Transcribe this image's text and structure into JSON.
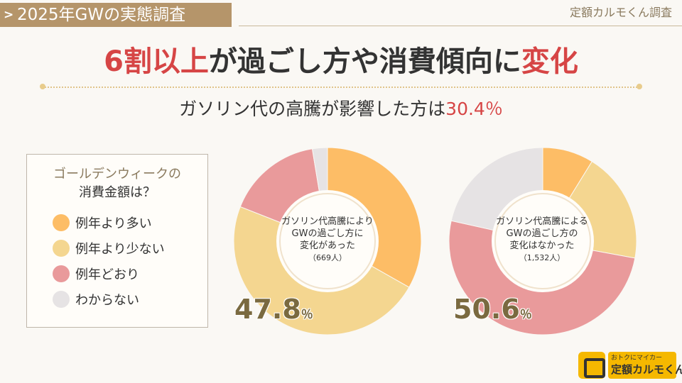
{
  "header": {
    "tag": "2025年GWの実態調査",
    "brand": "定額カルモくん調査"
  },
  "headline": {
    "part1": "6割以上",
    "part2": "が過ごし方や消費傾向に",
    "part3": "変化"
  },
  "subline": {
    "text": "ガソリン代の高騰が影響した方は",
    "pct": "30.4％"
  },
  "legend": {
    "title_line1": "ゴールデンウィークの",
    "title_line2": "消費金額は？",
    "items": [
      {
        "label": "例年より多い",
        "color": "#fdbd66"
      },
      {
        "label": "例年より少ない",
        "color": "#f4d690"
      },
      {
        "label": "例年どおり",
        "color": "#e99a9b"
      },
      {
        "label": "わからない",
        "color": "#e6e3e4"
      }
    ]
  },
  "chart_data": [
    {
      "type": "pie",
      "title": "",
      "center_label": [
        "ガソリン代高騰により",
        "GWの過ごし方に",
        "変化があった"
      ],
      "n_label": "（669人）",
      "categories": [
        "例年より多い",
        "例年より少ない",
        "例年どおり",
        "わからない"
      ],
      "values": [
        33.2,
        47.8,
        16.4,
        2.6
      ],
      "highlight_value": "47.8",
      "highlight_unit": "％"
    },
    {
      "type": "pie",
      "title": "",
      "center_label": [
        "ガソリン代高騰による",
        "GWの過ごし方の",
        "変化はなかった"
      ],
      "n_label": "（1,532人）",
      "categories": [
        "例年より多い",
        "例年より少ない",
        "例年どおり",
        "わからない"
      ],
      "values": [
        8.8,
        19.1,
        50.6,
        21.5
      ],
      "highlight_value": "50.6",
      "highlight_unit": "％"
    }
  ],
  "logo": {
    "line1": "おトクにマイカー",
    "line2": "定額カルモくん"
  }
}
